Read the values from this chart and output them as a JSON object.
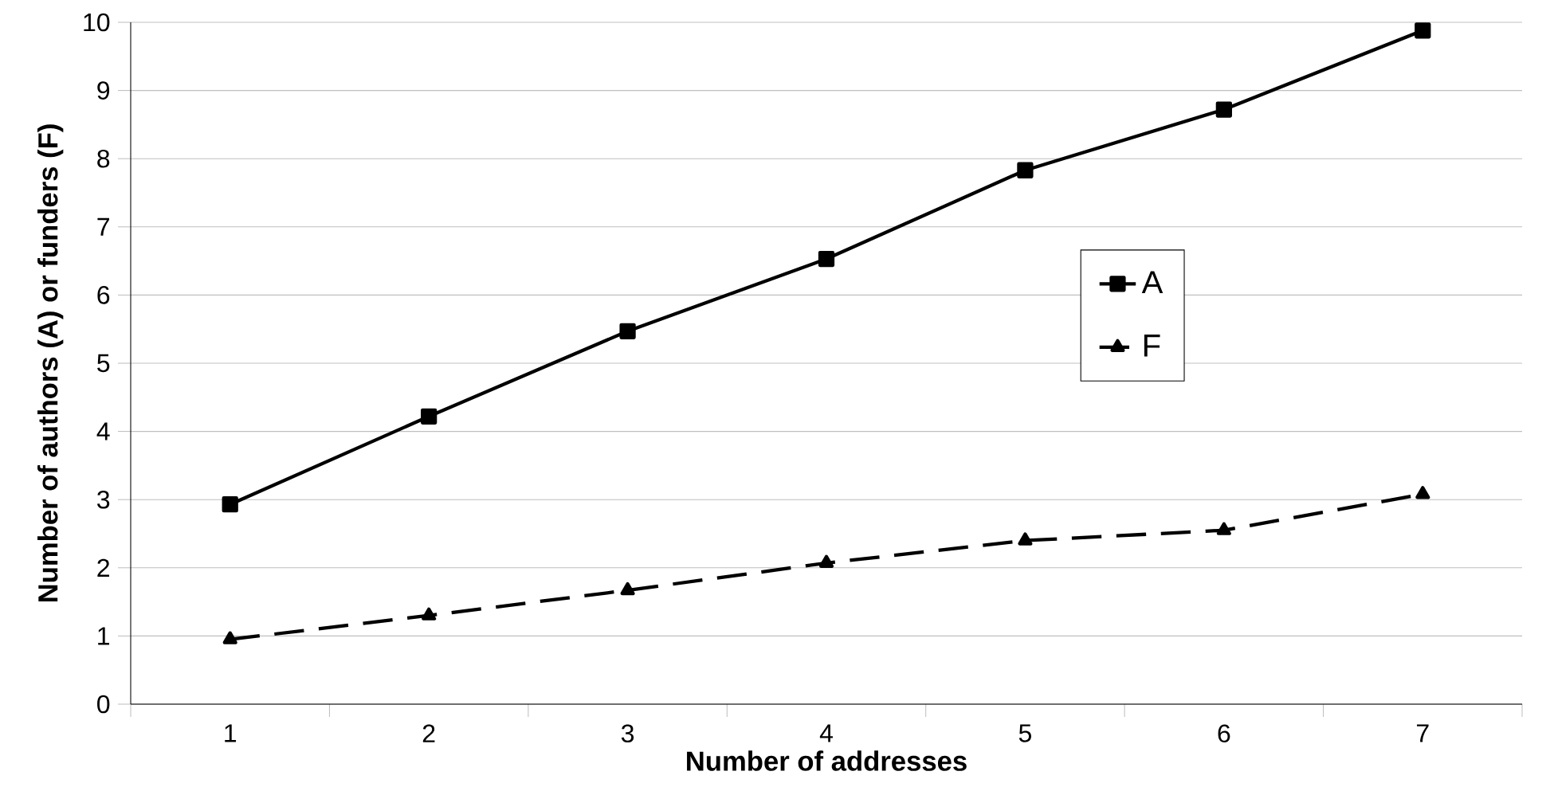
{
  "chart_data": {
    "type": "line",
    "xlabel": "Number of addresses",
    "ylabel": "Number of authors (A) or funders (F)",
    "categories": [
      "1",
      "2",
      "3",
      "4",
      "5",
      "6",
      "7"
    ],
    "series": [
      {
        "name": "A",
        "color": "#000000",
        "marker": "square",
        "line_style": "solid",
        "values": [
          2.93,
          4.22,
          5.47,
          6.53,
          7.83,
          8.72,
          9.88
        ]
      },
      {
        "name": "F",
        "color": "#000000",
        "marker": "triangle",
        "line_style": "dashed",
        "values": [
          0.95,
          1.3,
          1.67,
          2.07,
          2.4,
          2.55,
          3.08
        ]
      }
    ],
    "ylim": [
      0,
      10
    ],
    "yticks": [
      0,
      1,
      2,
      3,
      4,
      5,
      6,
      7,
      8,
      9,
      10
    ],
    "grid": "y",
    "legend": "right"
  }
}
